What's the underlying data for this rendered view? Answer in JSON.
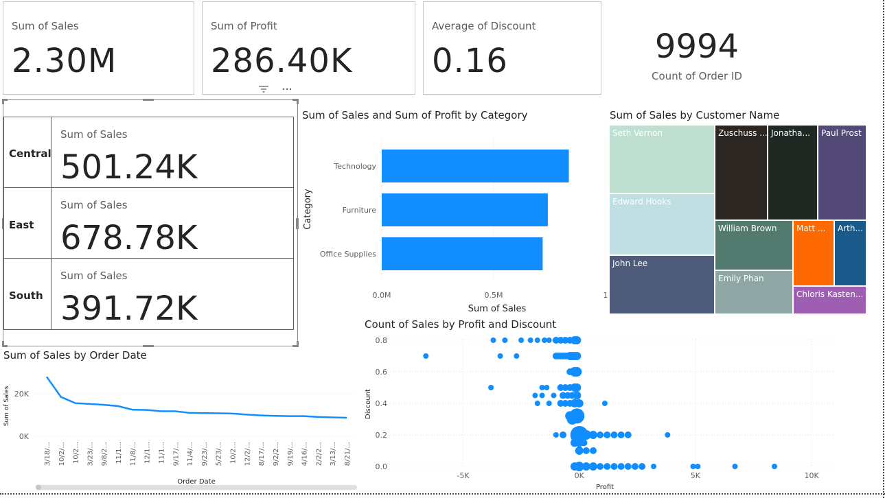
{
  "cards": [
    {
      "label": "Sum of Sales",
      "value": "2.30M"
    },
    {
      "label": "Sum of Profit",
      "value": "286.40K"
    },
    {
      "label": "Average of Discount",
      "value": "0.16"
    }
  ],
  "count_card": {
    "value": "9994",
    "label": "Count of Order ID"
  },
  "multirow": [
    {
      "region": "Central",
      "label": "Sum of Sales",
      "value": "501.24K"
    },
    {
      "region": "East",
      "label": "Sum of Sales",
      "value": "678.78K"
    },
    {
      "region": "South",
      "label": "Sum of Sales",
      "value": "391.72K"
    }
  ],
  "chart_data": [
    {
      "type": "bar",
      "title": "Sum of Sales and Sum of Profit by Category",
      "categories": [
        "Technology",
        "Furniture",
        "Office Supplies"
      ],
      "series": [
        {
          "values": [
            836000,
            742000,
            719000
          ]
        }
      ],
      "xlabel": "Sum of Sales",
      "ylabel": "Category",
      "xticks": [
        "0.0M",
        "0.5M",
        "1"
      ],
      "xlim": [
        0,
        1000000
      ],
      "color": "#118dff"
    },
    {
      "type": "treemap",
      "title": "Sum of Sales by Customer Name",
      "items": [
        {
          "name": "Seth Vernon",
          "color": "#bfe0d1"
        },
        {
          "name": "Edward Hooks",
          "color": "#c0dfe3"
        },
        {
          "name": "John Lee",
          "color": "#4e5a7a"
        },
        {
          "name": "Zuschuss ...",
          "color": "#2b2622"
        },
        {
          "name": "Jonatha...",
          "color": "#1f2822"
        },
        {
          "name": "Paul Prost",
          "color": "#534a78"
        },
        {
          "name": "William Brown",
          "color": "#537a6e"
        },
        {
          "name": "Matt ...",
          "color": "#ff6a00"
        },
        {
          "name": "Arth...",
          "color": "#1a5a8a"
        },
        {
          "name": "Emily Phan",
          "color": "#8fa7a4"
        },
        {
          "name": "Chloris Kasten...",
          "color": "#9e5fb2"
        }
      ]
    },
    {
      "type": "line",
      "title": "Sum of Sales by Order Date",
      "xlabel": "Order Date",
      "ylabel": "Sum of Sales",
      "x": [
        "3/18/...",
        "10/2/...",
        "10/2...",
        "3/23/...",
        "9/8/2...",
        "11/1...",
        "11/8/...",
        "12/1...",
        "11/1...",
        "9/17/...",
        "11/4/...",
        "9/23/...",
        "5/23/...",
        "10/2...",
        "12/2/...",
        "8/17/...",
        "9/2/2...",
        "9/19/...",
        "4/16/...",
        "2/2/2...",
        "3/13/...",
        "8/21/..."
      ],
      "values": [
        28000,
        18500,
        15600,
        15200,
        14800,
        14200,
        12500,
        12400,
        11800,
        11800,
        11000,
        10900,
        10800,
        10700,
        10200,
        9800,
        9600,
        9500,
        9500,
        9100,
        8900,
        8700
      ],
      "yticks": [
        "0K",
        "20K"
      ],
      "ylim": [
        0,
        31000
      ],
      "color": "#118dff"
    },
    {
      "type": "scatter",
      "title": "Count of Sales by Profit and Discount",
      "xlabel": "Profit",
      "ylabel": "Discount",
      "xticks": [
        "-5K",
        "0K",
        "5K",
        "10K"
      ],
      "yticks": [
        "0.0",
        "0.2",
        "0.4",
        "0.6",
        "0.8"
      ],
      "xlim": [
        -8500,
        11000
      ],
      "ylim": [
        0,
        0.8
      ],
      "color": "#118dff",
      "points": [
        [
          -6600,
          0.7,
          4
        ],
        [
          -3800,
          0.5,
          4
        ],
        [
          -3700,
          0.8,
          4
        ],
        [
          -3400,
          0.7,
          4
        ],
        [
          -3200,
          0.8,
          4
        ],
        [
          -2700,
          0.7,
          4
        ],
        [
          -2500,
          0.8,
          4
        ],
        [
          -2100,
          0.8,
          4
        ],
        [
          -1800,
          0.8,
          4
        ],
        [
          -1500,
          0.8,
          4
        ],
        [
          -1300,
          0.8,
          4
        ],
        [
          -1000,
          0.8,
          5
        ],
        [
          -800,
          0.8,
          5
        ],
        [
          -600,
          0.8,
          5
        ],
        [
          -400,
          0.8,
          5
        ],
        [
          -200,
          0.8,
          6
        ],
        [
          -100,
          0.8,
          6
        ],
        [
          -1000,
          0.7,
          5
        ],
        [
          -900,
          0.7,
          5
        ],
        [
          -800,
          0.7,
          5
        ],
        [
          -700,
          0.7,
          5
        ],
        [
          -600,
          0.7,
          5
        ],
        [
          -500,
          0.7,
          5
        ],
        [
          -400,
          0.7,
          6
        ],
        [
          -300,
          0.7,
          6
        ],
        [
          -200,
          0.7,
          6
        ],
        [
          -100,
          0.7,
          6
        ],
        [
          -200,
          0.6,
          7
        ],
        [
          -100,
          0.6,
          7
        ],
        [
          -400,
          0.6,
          5
        ],
        [
          -1600,
          0.5,
          4
        ],
        [
          -1400,
          0.5,
          4
        ],
        [
          -800,
          0.5,
          5
        ],
        [
          -600,
          0.5,
          5
        ],
        [
          -400,
          0.5,
          5
        ],
        [
          -200,
          0.5,
          6
        ],
        [
          -100,
          0.5,
          6
        ],
        [
          -1900,
          0.45,
          4
        ],
        [
          -1600,
          0.45,
          4
        ],
        [
          -1100,
          0.45,
          4
        ],
        [
          -700,
          0.45,
          5
        ],
        [
          -500,
          0.45,
          5
        ],
        [
          -300,
          0.45,
          5
        ],
        [
          -100,
          0.45,
          6
        ],
        [
          -1800,
          0.4,
          4
        ],
        [
          -1300,
          0.4,
          4
        ],
        [
          -800,
          0.4,
          5
        ],
        [
          -600,
          0.4,
          5
        ],
        [
          -400,
          0.4,
          5
        ],
        [
          -200,
          0.4,
          6
        ],
        [
          0,
          0.4,
          6
        ],
        [
          1100,
          0.4,
          4
        ],
        [
          -400,
          0.32,
          7
        ],
        [
          -100,
          0.32,
          11
        ],
        [
          -300,
          0.3,
          8
        ],
        [
          -1000,
          0.2,
          4
        ],
        [
          -700,
          0.2,
          5
        ],
        [
          0,
          0.2,
          13
        ],
        [
          300,
          0.2,
          7
        ],
        [
          600,
          0.2,
          6
        ],
        [
          900,
          0.2,
          5
        ],
        [
          1200,
          0.2,
          5
        ],
        [
          1500,
          0.2,
          5
        ],
        [
          1800,
          0.2,
          5
        ],
        [
          2100,
          0.2,
          5
        ],
        [
          3800,
          0.2,
          4
        ],
        [
          -200,
          0.15,
          6
        ],
        [
          0,
          0.15,
          6
        ],
        [
          200,
          0.15,
          5
        ],
        [
          0,
          0.1,
          6
        ],
        [
          300,
          0.1,
          5
        ],
        [
          600,
          0.1,
          5
        ],
        [
          -200,
          0.0,
          6
        ],
        [
          0,
          0.0,
          7
        ],
        [
          300,
          0.0,
          6
        ],
        [
          600,
          0.0,
          6
        ],
        [
          900,
          0.0,
          5
        ],
        [
          1200,
          0.0,
          5
        ],
        [
          1500,
          0.0,
          5
        ],
        [
          1800,
          0.0,
          5
        ],
        [
          2100,
          0.0,
          5
        ],
        [
          2400,
          0.0,
          5
        ],
        [
          2700,
          0.0,
          5
        ],
        [
          3200,
          0.0,
          4
        ],
        [
          4900,
          0.0,
          4
        ],
        [
          5100,
          0.0,
          4
        ],
        [
          6700,
          0.0,
          4
        ],
        [
          8400,
          0.0,
          4
        ]
      ]
    }
  ],
  "icons": {
    "filter": "filter-icon",
    "more": "more-options-icon"
  }
}
